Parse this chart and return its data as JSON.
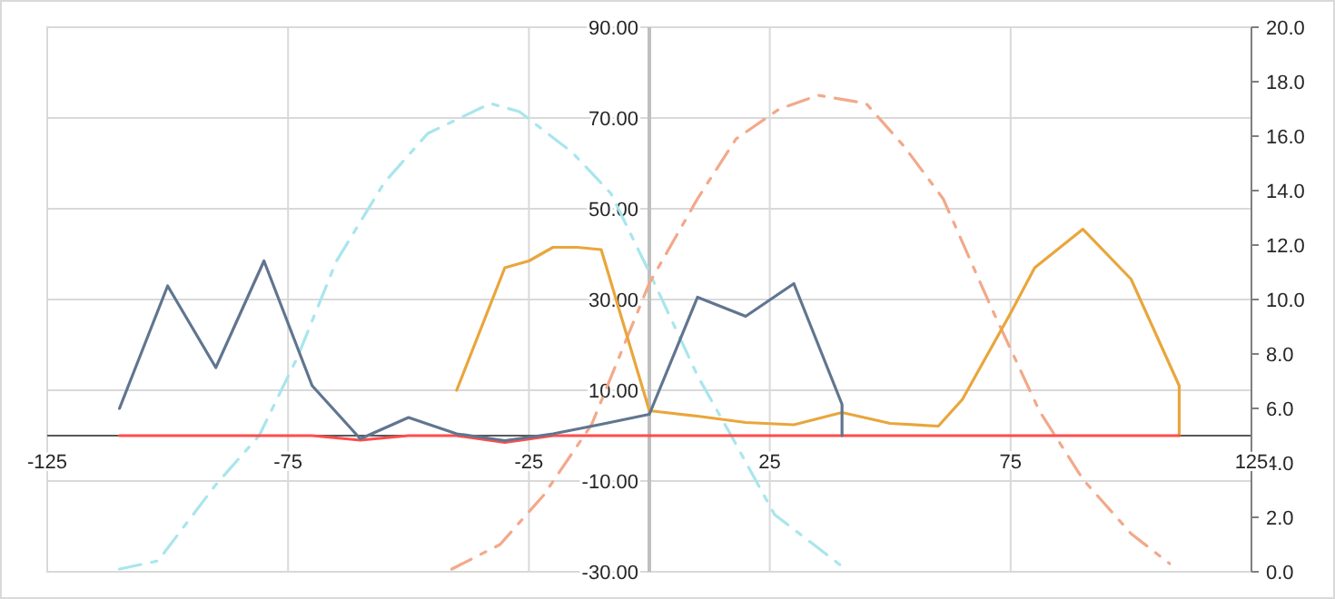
{
  "chart_data": {
    "type": "line",
    "xlim": [
      -125,
      125
    ],
    "xticks": [
      -125,
      -75,
      -25,
      25,
      75,
      125
    ],
    "ylim": [
      -30,
      90
    ],
    "yticks": [
      {
        "value": -30,
        "label": "-30.00"
      },
      {
        "value": -10,
        "label": "-10.00"
      },
      {
        "value": 10,
        "label": "10.00"
      },
      {
        "value": 30,
        "label": "30.00"
      },
      {
        "value": 50,
        "label": "50.00"
      },
      {
        "value": 70,
        "label": "70.00"
      },
      {
        "value": 90,
        "label": "90.00"
      }
    ],
    "y2lim": [
      0,
      20
    ],
    "y2ticks": [
      {
        "value": 0,
        "label": "0.0"
      },
      {
        "value": 2,
        "label": "2.0"
      },
      {
        "value": 4,
        "label": "4.0"
      },
      {
        "value": 6,
        "label": "6.0"
      },
      {
        "value": 8,
        "label": "8.0"
      },
      {
        "value": 10,
        "label": "10.0"
      },
      {
        "value": 12,
        "label": "12.0"
      },
      {
        "value": 14,
        "label": "14.0"
      },
      {
        "value": 16,
        "label": "16.0"
      },
      {
        "value": 18,
        "label": "18.0"
      },
      {
        "value": 20,
        "label": "20.0"
      }
    ],
    "grid": true,
    "marker": "none",
    "series": [
      {
        "color": "#a8e6ec",
        "axis": "y2",
        "line_style": "dashed",
        "x": [
          -110,
          -102,
          -90,
          -81,
          -73,
          -65,
          -55,
          -46,
          -33,
          -27,
          -16,
          -8,
          0,
          10,
          17,
          26,
          40
        ],
        "values": [
          0.1,
          0.4,
          3.2,
          5,
          7.9,
          11.4,
          14.3,
          16.1,
          17.2,
          16.9,
          15.4,
          13.9,
          11,
          7.2,
          5,
          2.1,
          0.2
        ]
      },
      {
        "color": "#f2a98a",
        "axis": "y2",
        "line_style": "dashed",
        "x": [
          -41,
          -31,
          -22,
          -12,
          0,
          10,
          18,
          27,
          35,
          45,
          53,
          61,
          71,
          81,
          90,
          100,
          108
        ],
        "values": [
          0.1,
          1,
          2.8,
          5.4,
          10.6,
          13.7,
          15.9,
          17,
          17.5,
          17.2,
          15.6,
          13.7,
          9.7,
          5.9,
          3.4,
          1.4,
          0.3
        ]
      },
      {
        "color": "#e9a63c",
        "line_style": "solid",
        "x": [
          -40,
          -30,
          -25,
          -20,
          -15,
          -10,
          0,
          10,
          20,
          30,
          40,
          50,
          60,
          65,
          75,
          80,
          90,
          100,
          110,
          110
        ],
        "values": [
          10,
          37,
          38.5,
          41.5,
          41.5,
          41,
          5.5,
          4.3,
          2.9,
          2.4,
          5.1,
          2.7,
          2.1,
          8,
          27,
          37,
          45.5,
          34.5,
          11,
          0
        ]
      },
      {
        "color": "#ff4d4d",
        "line_style": "solid",
        "x": [
          -110,
          -70,
          -60,
          -50,
          -40,
          -30,
          -20,
          -10,
          0,
          110
        ],
        "values": [
          0,
          0,
          -1,
          0,
          0,
          -1.5,
          0,
          0,
          0,
          0
        ]
      },
      {
        "color": "#60758f",
        "line_style": "solid",
        "x": [
          -110,
          -100,
          -90,
          -80,
          -70,
          -60,
          -50,
          -40,
          -30,
          -20,
          -10,
          0,
          10,
          20,
          30,
          40,
          40
        ],
        "values": [
          6,
          33,
          15,
          38.5,
          11,
          -0.7,
          4,
          0.4,
          -1.1,
          0.4,
          2.5,
          4.7,
          30.5,
          26.3,
          33.5,
          6.9,
          0
        ]
      }
    ]
  }
}
